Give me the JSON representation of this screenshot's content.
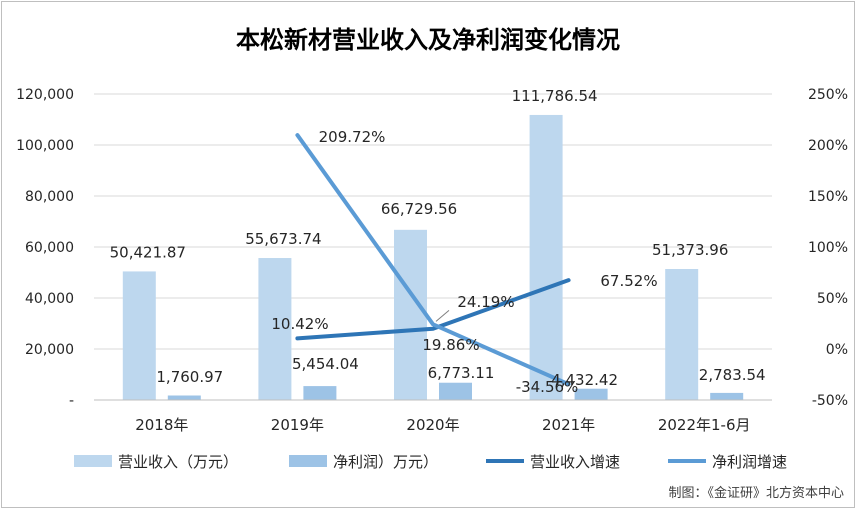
{
  "chart_data": {
    "type": "bar+line",
    "title": "本松新材营业收入及净利润变化情况",
    "categories": [
      "2018年",
      "2019年",
      "2020年",
      "2021年",
      "2022年1-6月"
    ],
    "left_axis": {
      "ylim": [
        0,
        120000
      ],
      "ticks": [
        {
          "value": 0,
          "label": "-"
        },
        {
          "value": 20000,
          "label": "20,000"
        },
        {
          "value": 40000,
          "label": "40,000"
        },
        {
          "value": 60000,
          "label": "60,000"
        },
        {
          "value": 80000,
          "label": "80,000"
        },
        {
          "value": 100000,
          "label": "100,000"
        },
        {
          "value": 120000,
          "label": "120,000"
        }
      ]
    },
    "right_axis": {
      "ylim": [
        -50,
        250
      ],
      "ticks": [
        {
          "value": -50,
          "label": "-50%"
        },
        {
          "value": 0,
          "label": "0%"
        },
        {
          "value": 50,
          "label": "50%"
        },
        {
          "value": 100,
          "label": "100%"
        },
        {
          "value": 150,
          "label": "150%"
        },
        {
          "value": 200,
          "label": "200%"
        },
        {
          "value": 250,
          "label": "250%"
        }
      ]
    },
    "grid": true,
    "legend_position": "bottom",
    "series": [
      {
        "name": "营业收入（万元）",
        "kind": "bar",
        "axis": "left",
        "color": "#bdd7ee",
        "values": [
          50421.87,
          55673.74,
          66729.56,
          111786.54,
          51373.96
        ],
        "labels": [
          "50,421.87",
          "55,673.74",
          "66,729.56",
          "111,786.54",
          "51,373.96"
        ]
      },
      {
        "name": "净利润）万元）",
        "kind": "bar",
        "axis": "left",
        "color": "#9dc3e6",
        "values": [
          1760.97,
          5454.04,
          6773.11,
          4432.42,
          2783.54
        ],
        "labels": [
          "1,760.97",
          "5,454.04",
          "6,773.11",
          "4,432.42",
          "2,783.54"
        ]
      },
      {
        "name": "营业收入增速",
        "kind": "line",
        "axis": "right",
        "color": "#2e75b6",
        "values": [
          null,
          10.42,
          19.86,
          67.52,
          null
        ],
        "labels": [
          null,
          "10.42%",
          "19.86%",
          "67.52%",
          null
        ]
      },
      {
        "name": "净利润增速",
        "kind": "line",
        "axis": "right",
        "color": "#5b9bd5",
        "values": [
          null,
          209.72,
          24.19,
          -34.56,
          null
        ],
        "labels": [
          null,
          "209.72%",
          "24.19%",
          "-34.56%",
          null
        ]
      }
    ],
    "source_note": "制图：《金证研》北方资本中心"
  }
}
